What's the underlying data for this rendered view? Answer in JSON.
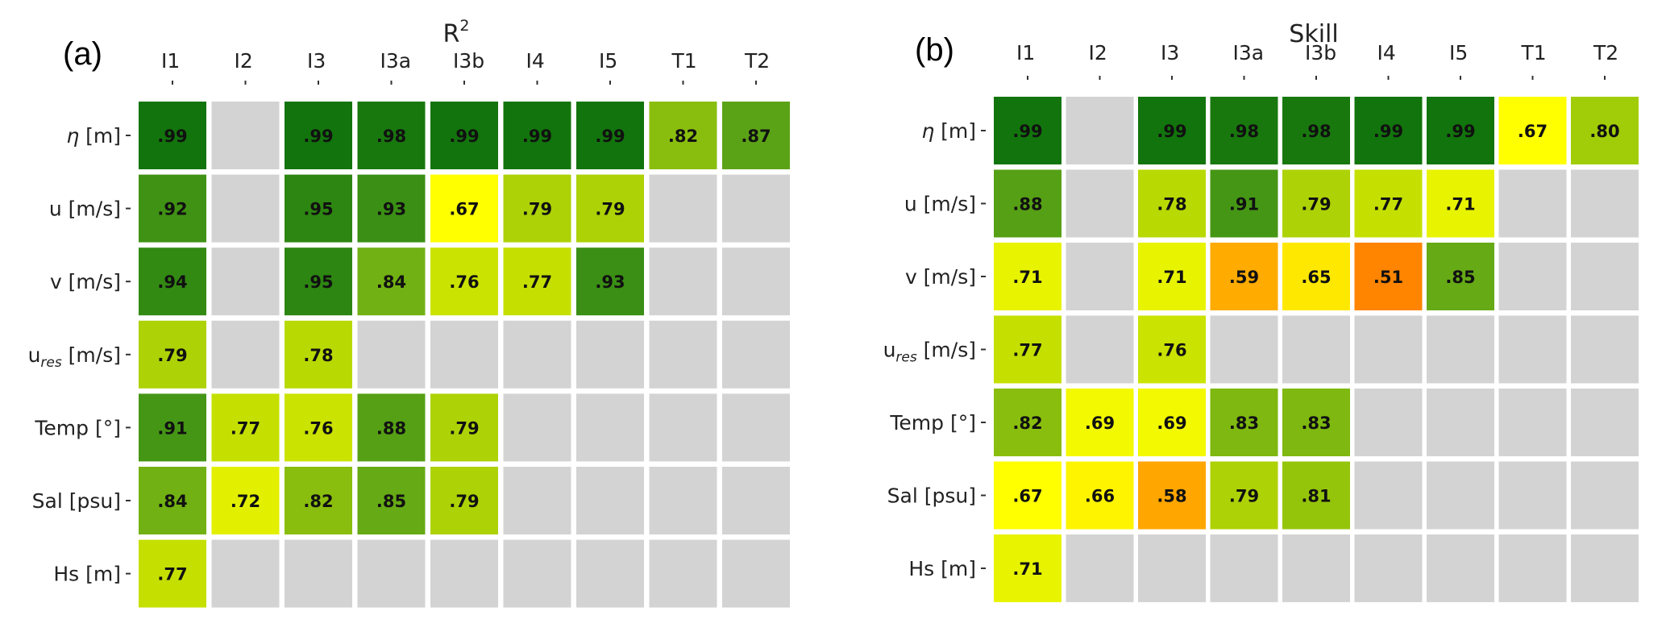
{
  "chart_data": [
    {
      "type": "heatmap",
      "panel_label": "(a)",
      "title": "R",
      "title_superscript": "2",
      "columns": [
        "I1",
        "I2",
        "I3",
        "I3a",
        "I3b",
        "I4",
        "I5",
        "T1",
        "T2"
      ],
      "rows": [
        {
          "label": "η [m]",
          "italic_symbol": "η",
          "rest": " [m]"
        },
        {
          "label": "u [m/s]"
        },
        {
          "label": "v [m/s]"
        },
        {
          "label": "ures [m/s]",
          "base": "u",
          "subscript": "res",
          "rest": " [m/s]"
        },
        {
          "label": "Temp [°]"
        },
        {
          "label": "Sal [psu]"
        },
        {
          "label": "Hs [m]"
        }
      ],
      "values": [
        [
          0.99,
          null,
          0.99,
          0.98,
          0.99,
          0.99,
          0.99,
          0.82,
          0.87
        ],
        [
          0.92,
          null,
          0.95,
          0.93,
          0.67,
          0.79,
          0.79,
          null,
          null
        ],
        [
          0.94,
          null,
          0.95,
          0.84,
          0.76,
          0.77,
          0.93,
          null,
          null
        ],
        [
          0.79,
          null,
          0.78,
          null,
          null,
          null,
          null,
          null,
          null
        ],
        [
          0.91,
          0.77,
          0.76,
          0.88,
          0.79,
          null,
          null,
          null,
          null
        ],
        [
          0.84,
          0.72,
          0.82,
          0.85,
          0.79,
          null,
          null,
          null,
          null
        ],
        [
          0.77,
          null,
          null,
          null,
          null,
          null,
          null,
          null,
          null
        ]
      ],
      "labels": [
        [
          ".99",
          "",
          ".99",
          ".98",
          ".99",
          ".99",
          ".99",
          ".82",
          ".87"
        ],
        [
          ".92",
          "",
          ".95",
          ".93",
          ".67",
          ".79",
          ".79",
          "",
          ""
        ],
        [
          ".94",
          "",
          ".95",
          ".84",
          ".76",
          ".77",
          ".93",
          "",
          ""
        ],
        [
          ".79",
          "",
          ".78",
          "",
          "",
          "",
          "",
          "",
          ""
        ],
        [
          ".91",
          ".77",
          ".76",
          ".88",
          ".79",
          "",
          "",
          "",
          ""
        ],
        [
          ".84",
          ".72",
          ".82",
          ".85",
          ".79",
          "",
          "",
          "",
          ""
        ],
        [
          ".77",
          "",
          "",
          "",
          "",
          "",
          "",
          "",
          ""
        ]
      ]
    },
    {
      "type": "heatmap",
      "panel_label": "(b)",
      "title": "Skill",
      "columns": [
        "I1",
        "I2",
        "I3",
        "I3a",
        "I3b",
        "I4",
        "I5",
        "T1",
        "T2"
      ],
      "rows": [
        {
          "label": "η [m]",
          "italic_symbol": "η",
          "rest": " [m]"
        },
        {
          "label": "u [m/s]"
        },
        {
          "label": "v [m/s]"
        },
        {
          "label": "ures [m/s]",
          "base": "u",
          "subscript": "res",
          "rest": " [m/s]"
        },
        {
          "label": "Temp [°]"
        },
        {
          "label": "Sal [psu]"
        },
        {
          "label": "Hs [m]"
        }
      ],
      "values": [
        [
          0.99,
          null,
          0.99,
          0.98,
          0.98,
          0.99,
          0.99,
          0.67,
          0.8
        ],
        [
          0.88,
          null,
          0.78,
          0.91,
          0.79,
          0.77,
          0.71,
          null,
          null
        ],
        [
          0.71,
          null,
          0.71,
          0.59,
          0.65,
          0.51,
          0.85,
          null,
          null
        ],
        [
          0.77,
          null,
          0.76,
          null,
          null,
          null,
          null,
          null,
          null
        ],
        [
          0.82,
          0.69,
          0.69,
          0.83,
          0.83,
          null,
          null,
          null,
          null
        ],
        [
          0.67,
          0.66,
          0.58,
          0.79,
          0.81,
          null,
          null,
          null,
          null
        ],
        [
          0.71,
          null,
          null,
          null,
          null,
          null,
          null,
          null,
          null
        ]
      ],
      "labels": [
        [
          ".99",
          "",
          ".99",
          ".98",
          ".98",
          ".99",
          ".99",
          ".67",
          ".80"
        ],
        [
          ".88",
          "",
          ".78",
          ".91",
          ".79",
          ".77",
          ".71",
          "",
          ""
        ],
        [
          ".71",
          "",
          ".71",
          ".59",
          ".65",
          ".51",
          ".85",
          "",
          ""
        ],
        [
          ".77",
          "",
          ".76",
          "",
          "",
          "",
          "",
          "",
          ""
        ],
        [
          ".82",
          ".69",
          ".69",
          ".83",
          ".83",
          "",
          "",
          "",
          ""
        ],
        [
          ".67",
          ".66",
          ".58",
          ".79",
          ".81",
          "",
          "",
          "",
          ""
        ],
        [
          ".71",
          "",
          "",
          "",
          "",
          "",
          "",
          "",
          ""
        ]
      ]
    }
  ],
  "colors": {
    "missing": "#d3d3d3",
    "scale": [
      {
        "v": 0.5,
        "c": "#ff7f00"
      },
      {
        "v": 0.6,
        "c": "#ffb000"
      },
      {
        "v": 0.67,
        "c": "#ffff00"
      },
      {
        "v": 0.77,
        "c": "#c5e000"
      },
      {
        "v": 0.85,
        "c": "#66aa16"
      },
      {
        "v": 0.93,
        "c": "#3a8f14"
      },
      {
        "v": 1.0,
        "c": "#0b6f0b"
      }
    ]
  }
}
